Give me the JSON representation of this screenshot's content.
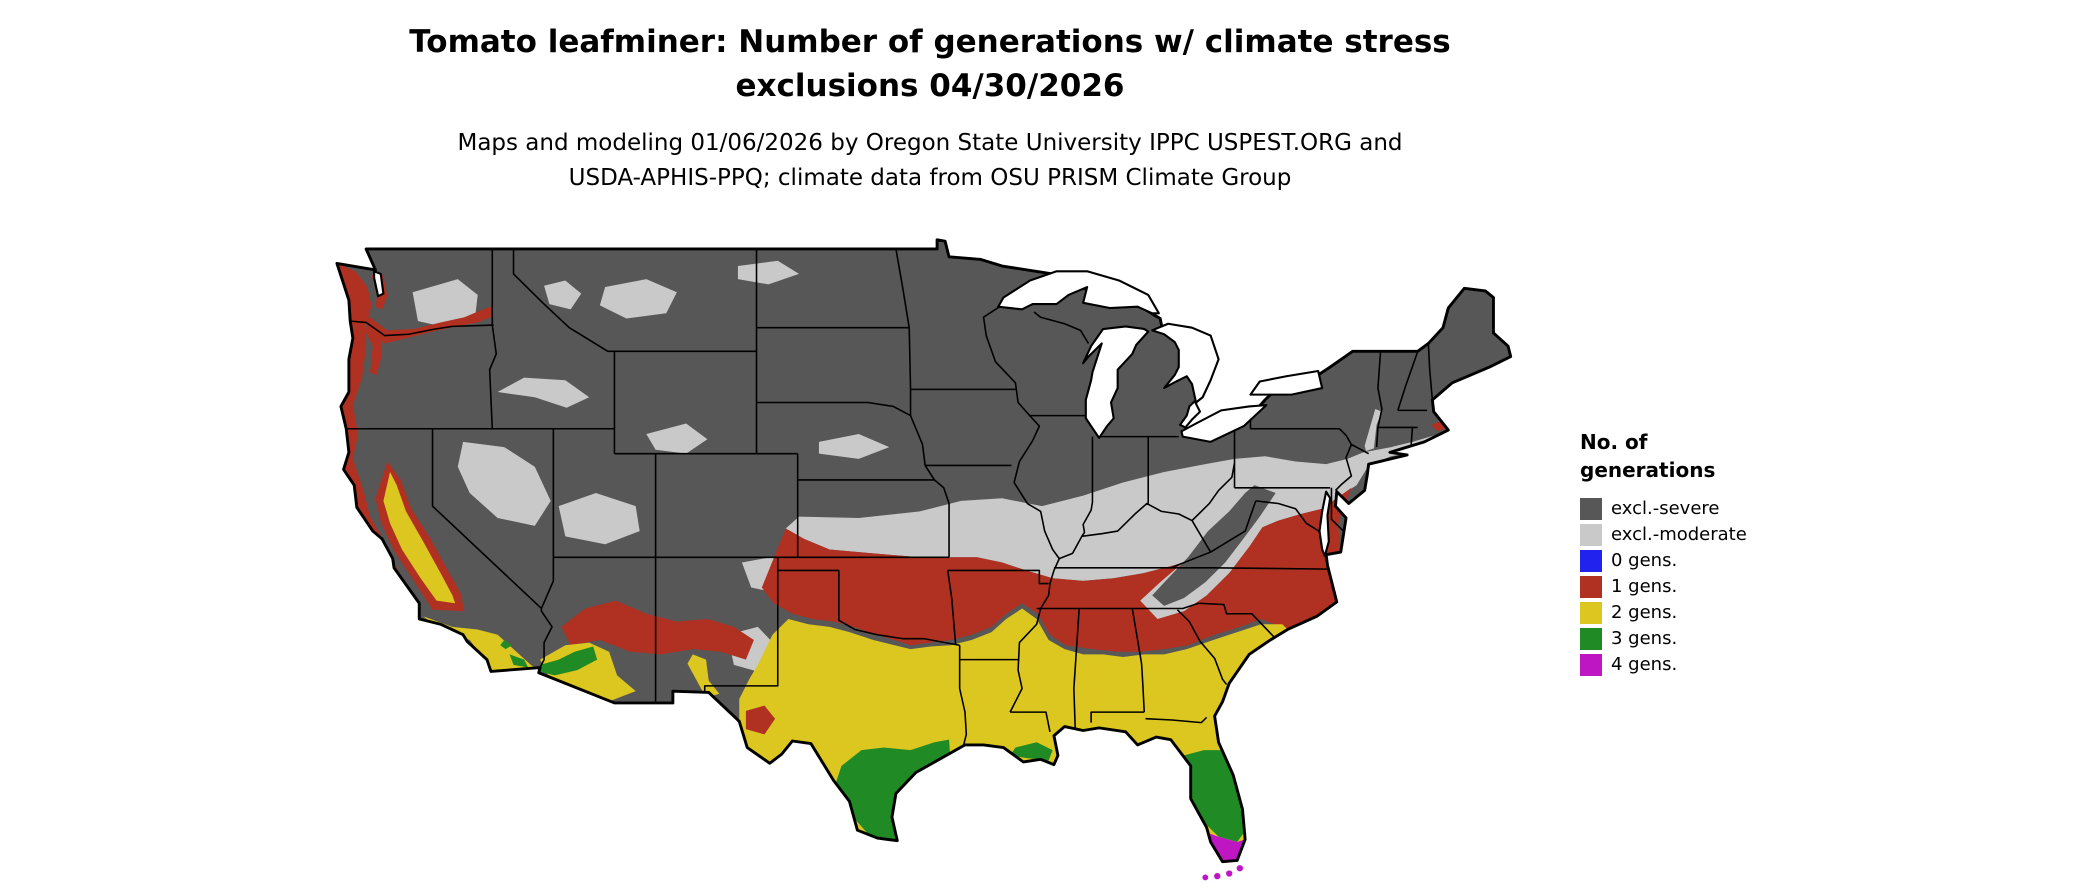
{
  "title": {
    "line1": "Tomato leafminer: Number of generations w/ climate stress",
    "line2": "exclusions 04/30/2026"
  },
  "subtitle": {
    "line1": "Maps and modeling 01/06/2026 by Oregon State University IPPC USPEST.ORG and",
    "line2": "USDA-APHIS-PPQ; climate data from OSU PRISM Climate Group"
  },
  "legend": {
    "heading_line1": "No. of",
    "heading_line2": "generations",
    "items": [
      {
        "label": "excl.-severe",
        "color": "#575757"
      },
      {
        "label": "excl.-moderate",
        "color": "#c9c9c9"
      },
      {
        "label": "0 gens.",
        "color": "#2222ee"
      },
      {
        "label": "1 gens.",
        "color": "#b03021"
      },
      {
        "label": "2 gens.",
        "color": "#dcc620"
      },
      {
        "label": "3 gens.",
        "color": "#208b24"
      },
      {
        "label": "4 gens.",
        "color": "#bf16c4"
      }
    ]
  },
  "map": {
    "type": "choropleth",
    "region": "Continental United States (lower 48 states)",
    "outline_color": "#000000",
    "water_color": "#ffffff",
    "value_meaning": "Number of tomato leafminer generations with climate stress exclusions",
    "distribution_notes": {
      "excl_severe": "northern states, Rockies, Sierra Nevada, Appalachian highlands",
      "excl_moderate": "central transitional band (Kansas to mid-Atlantic), Great Basin patches",
      "one_gen": "Pacific coastal strip, Oklahoma/Arkansas/Tennessee/Carolinas band, central AZ-NM",
      "two_gens": "central/east Texas, Gulf states, southern Georgia, north Florida, CA Central Valley, southern CA, southern AZ",
      "three_gens": "south Texas, central Florida, low deserts of AZ/CA, Louisiana delta coast",
      "four_gens": "southern tip of Florida and Florida Keys"
    }
  }
}
